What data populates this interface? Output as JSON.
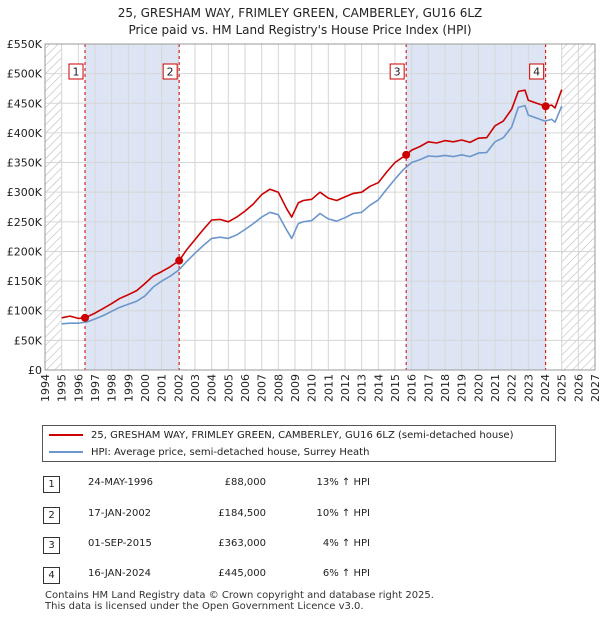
{
  "title_line1": "25, GRESHAM WAY, FRIMLEY GREEN, CAMBERLEY, GU16 6LZ",
  "title_line2": "Price paid vs. HM Land Registry's House Price Index (HPI)",
  "colors": {
    "property_line": "#cc0000",
    "hpi_line": "#6c96cc",
    "shade": "#dde5f4",
    "marker_box": "#cc0000"
  },
  "chart_data": {
    "type": "line",
    "xlim": [
      1994,
      2027
    ],
    "ylim": [
      0,
      550000
    ],
    "y_ticks": [
      {
        "v": 0,
        "label": "£0"
      },
      {
        "v": 50000,
        "label": "£50K"
      },
      {
        "v": 100000,
        "label": "£100K"
      },
      {
        "v": 150000,
        "label": "£150K"
      },
      {
        "v": 200000,
        "label": "£200K"
      },
      {
        "v": 250000,
        "label": "£250K"
      },
      {
        "v": 300000,
        "label": "£300K"
      },
      {
        "v": 350000,
        "label": "£350K"
      },
      {
        "v": 400000,
        "label": "£400K"
      },
      {
        "v": 450000,
        "label": "£450K"
      },
      {
        "v": 500000,
        "label": "£500K"
      },
      {
        "v": 550000,
        "label": "£550K"
      }
    ],
    "x_ticks": [
      "1994",
      "1995",
      "1996",
      "1997",
      "1998",
      "1999",
      "2000",
      "2001",
      "2002",
      "2003",
      "2004",
      "2005",
      "2006",
      "2007",
      "2008",
      "2009",
      "2010",
      "2011",
      "2012",
      "2013",
      "2014",
      "2015",
      "2016",
      "2017",
      "2018",
      "2019",
      "2020",
      "2021",
      "2022",
      "2023",
      "2024",
      "2025",
      "2026",
      "2027"
    ],
    "data_start": 1995.0,
    "future_start": 2025.0,
    "series": [
      {
        "name": "25, GRESHAM WAY, FRIMLEY GREEN, CAMBERLEY, GU16 6LZ (semi-detached house)",
        "x": [
          1995,
          1995.5,
          1996,
          1996.4,
          1997,
          1997.5,
          1998,
          1998.5,
          1999,
          1999.5,
          2000,
          2000.5,
          2001,
          2001.5,
          2002.05,
          2002.5,
          2003,
          2003.5,
          2004,
          2004.5,
          2005,
          2005.5,
          2006,
          2006.5,
          2007,
          2007.5,
          2008,
          2008.5,
          2008.8,
          2009.2,
          2009.5,
          2010,
          2010.5,
          2011,
          2011.5,
          2012,
          2012.5,
          2013,
          2013.5,
          2014,
          2014.5,
          2015,
          2015.67,
          2016,
          2016.5,
          2017,
          2017.5,
          2018,
          2018.5,
          2019,
          2019.5,
          2020,
          2020.5,
          2021,
          2021.5,
          2022,
          2022.4,
          2022.8,
          2023,
          2023.5,
          2024.04,
          2024.4,
          2024.6,
          2025.0
        ],
        "values": [
          88000,
          91000,
          87000,
          88000,
          96000,
          104000,
          112000,
          121000,
          127000,
          134000,
          146000,
          159000,
          166000,
          174000,
          184500,
          203000,
          220000,
          237000,
          253000,
          254000,
          250000,
          258000,
          268000,
          280000,
          296000,
          305000,
          300000,
          272000,
          258000,
          282000,
          286000,
          288000,
          300000,
          290000,
          286000,
          292000,
          298000,
          300000,
          310000,
          316000,
          334000,
          350000,
          363000,
          371000,
          377000,
          385000,
          383000,
          387000,
          385000,
          388000,
          384000,
          391000,
          392000,
          412000,
          420000,
          440000,
          470000,
          472000,
          455000,
          450000,
          445000,
          447000,
          442000,
          473000
        ]
      },
      {
        "name": "HPI: Average price, semi-detached house, Surrey Heath",
        "x": [
          1995,
          1995.5,
          1996,
          1996.5,
          1997,
          1997.5,
          1998,
          1998.5,
          1999,
          1999.5,
          2000,
          2000.5,
          2001,
          2001.5,
          2002,
          2002.5,
          2003,
          2003.5,
          2004,
          2004.5,
          2005,
          2005.5,
          2006,
          2006.5,
          2007,
          2007.5,
          2008,
          2008.5,
          2008.8,
          2009.2,
          2009.5,
          2010,
          2010.5,
          2011,
          2011.5,
          2012,
          2012.5,
          2013,
          2013.5,
          2014,
          2014.5,
          2015,
          2015.5,
          2016,
          2016.5,
          2017,
          2017.5,
          2018,
          2018.5,
          2019,
          2019.5,
          2020,
          2020.5,
          2021,
          2021.5,
          2022,
          2022.4,
          2022.8,
          2023,
          2023.5,
          2024,
          2024.4,
          2024.6,
          2025.0
        ],
        "values": [
          78000,
          79000,
          79000,
          81000,
          86000,
          92000,
          99000,
          106000,
          111000,
          116000,
          125000,
          140000,
          150000,
          158000,
          168000,
          183000,
          197000,
          210000,
          222000,
          224000,
          222000,
          228000,
          237000,
          247000,
          258000,
          266000,
          262000,
          236000,
          222000,
          247000,
          250000,
          252000,
          264000,
          255000,
          251000,
          257000,
          264000,
          266000,
          278000,
          287000,
          305000,
          322000,
          338000,
          350000,
          355000,
          361000,
          360000,
          362000,
          360000,
          363000,
          360000,
          366000,
          367000,
          385000,
          392000,
          410000,
          443000,
          446000,
          430000,
          425000,
          420000,
          423000,
          418000,
          445000
        ]
      }
    ],
    "sales": [
      {
        "n": "1",
        "year": 1996.4,
        "price": 88000
      },
      {
        "n": "2",
        "year": 2002.05,
        "price": 184500
      },
      {
        "n": "3",
        "year": 2015.67,
        "price": 363000
      },
      {
        "n": "4",
        "year": 2024.04,
        "price": 445000
      }
    ]
  },
  "legend": {
    "property": "25, GRESHAM WAY, FRIMLEY GREEN, CAMBERLEY, GU16 6LZ (semi-detached house)",
    "hpi": "HPI: Average price, semi-detached house, Surrey Heath"
  },
  "transactions": [
    {
      "n": "1",
      "date": "24-MAY-1996",
      "price": "£88,000",
      "hpi": "13% ↑ HPI"
    },
    {
      "n": "2",
      "date": "17-JAN-2002",
      "price": "£184,500",
      "hpi": "10% ↑ HPI"
    },
    {
      "n": "3",
      "date": "01-SEP-2015",
      "price": "£363,000",
      "hpi": "4% ↑ HPI"
    },
    {
      "n": "4",
      "date": "16-JAN-2024",
      "price": "£445,000",
      "hpi": "6% ↑ HPI"
    }
  ],
  "footer": {
    "line1": "Contains HM Land Registry data © Crown copyright and database right 2025.",
    "line2": "This data is licensed under the Open Government Licence v3.0."
  }
}
